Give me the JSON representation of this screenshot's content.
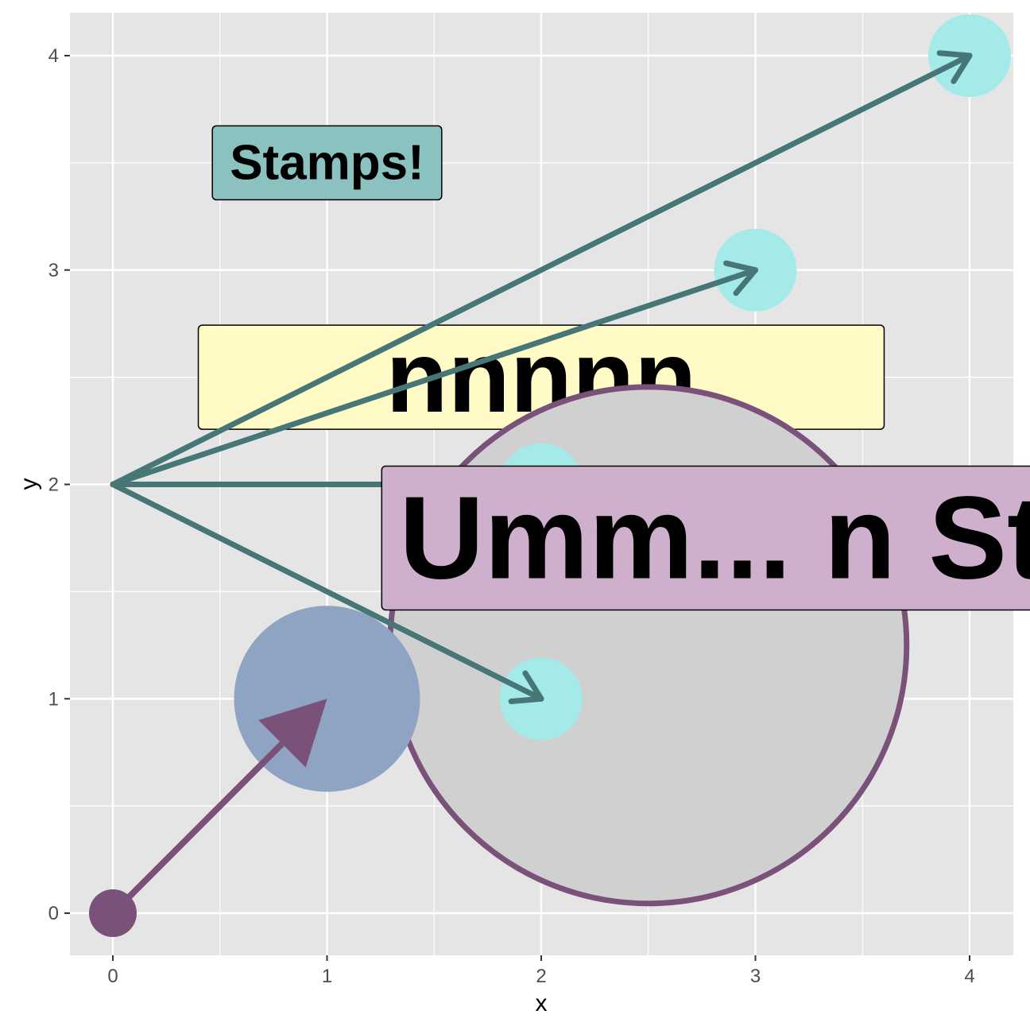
{
  "chart_data": {
    "type": "scatter",
    "title": "",
    "xlabel": "x",
    "ylabel": "y",
    "xlim": [
      -0.2,
      4.2
    ],
    "ylim": [
      -0.2,
      4.2
    ],
    "xticks": [
      "0",
      "1",
      "2",
      "3",
      "4"
    ],
    "yticks": [
      "0",
      "1",
      "2",
      "3",
      "4"
    ],
    "grid": true,
    "panel_background": "#e5e5e5",
    "points": [
      {
        "x": 0,
        "y": 0,
        "color": "#7a5178"
      },
      {
        "x": 1,
        "y": 1,
        "color": "#8fa4c2"
      },
      {
        "x": 2,
        "y": 1,
        "color": "#a3eae8"
      },
      {
        "x": 2,
        "y": 2,
        "color": "#a3eae8"
      },
      {
        "x": 3,
        "y": 3,
        "color": "#a3eae8"
      },
      {
        "x": 4,
        "y": 4,
        "color": "#a3eae8"
      }
    ],
    "big_circle": {
      "x": 2.5,
      "y": 1.25,
      "fill": "#d0d0d0",
      "stroke": "#7a5178"
    },
    "arrows": [
      {
        "from": [
          0,
          0
        ],
        "to": [
          1,
          1
        ],
        "color": "#7a5178",
        "style": "closed"
      },
      {
        "from": [
          0,
          2
        ],
        "to": [
          4,
          4
        ],
        "color": "#467676",
        "style": "open"
      },
      {
        "from": [
          0,
          2
        ],
        "to": [
          3,
          3
        ],
        "color": "#467676",
        "style": "open"
      },
      {
        "from": [
          0,
          2
        ],
        "to": [
          2,
          2
        ],
        "color": "#467676",
        "style": "open"
      },
      {
        "from": [
          0,
          2
        ],
        "to": [
          2,
          1
        ],
        "color": "#467676",
        "style": "open"
      }
    ],
    "stamps": [
      {
        "text": "Stamps!",
        "x": 1.0,
        "y": 3.5,
        "fill": "#8bc2c0"
      },
      {
        "text": "nnnnn",
        "x": 2.0,
        "y": 2.5,
        "fill": "#fffac6"
      },
      {
        "text": "Umm...  n Sta",
        "x": 3.0,
        "y": 1.75,
        "fill": "#ceb0cd"
      }
    ]
  }
}
